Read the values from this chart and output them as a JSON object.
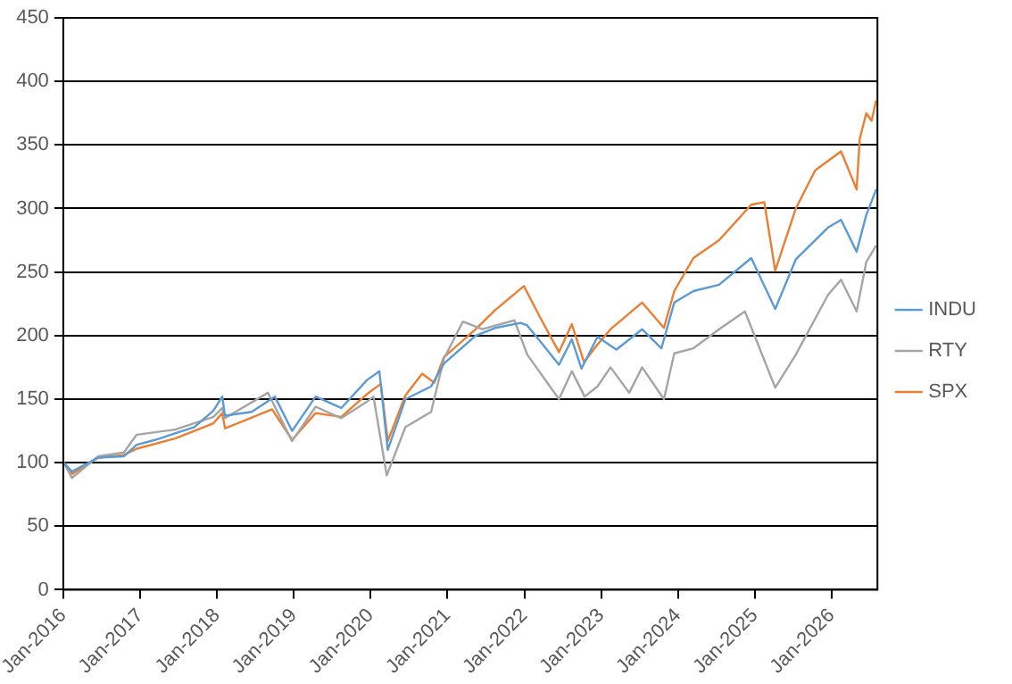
{
  "chart_data": {
    "type": "line",
    "ylim": [
      0,
      450
    ],
    "yticks": [
      0,
      50,
      100,
      150,
      200,
      250,
      300,
      350,
      400,
      450
    ],
    "xlim": [
      "2016-01-01",
      "2026-08-07"
    ],
    "xticks": [
      {
        "value": "2016-01-01",
        "label": "Jan-2016"
      },
      {
        "value": "2017-01-01",
        "label": "Jan-2017"
      },
      {
        "value": "2018-01-01",
        "label": "Jan-2018"
      },
      {
        "value": "2019-01-01",
        "label": "Jan-2019"
      },
      {
        "value": "2020-01-01",
        "label": "Jan-2020"
      },
      {
        "value": "2021-01-01",
        "label": "Jan-2021"
      },
      {
        "value": "2022-01-01",
        "label": "Jan-2022"
      },
      {
        "value": "2023-01-01",
        "label": "Jan-2023"
      },
      {
        "value": "2024-01-01",
        "label": "Jan-2024"
      },
      {
        "value": "2025-01-01",
        "label": "Jan-2025"
      },
      {
        "value": "2026-01-01",
        "label": "Jan-2026"
      }
    ],
    "grid": "y",
    "legend": "right",
    "marker": "none",
    "line_style": "solid",
    "series": [
      {
        "name": "INDU",
        "color": "#5b9bd5",
        "x": [
          "2016-01-04",
          "2016-02-11",
          "2016-06-15",
          "2016-10-15",
          "2016-12-15",
          "2017-03-15",
          "2017-06-15",
          "2017-09-15",
          "2017-12-15",
          "2018-01-26",
          "2018-02-08",
          "2018-06-15",
          "2018-10-03",
          "2018-12-24",
          "2019-04-15",
          "2019-08-15",
          "2019-12-15",
          "2020-02-12",
          "2020-03-23",
          "2020-06-15",
          "2020-10-15",
          "2020-12-15",
          "2021-05-15",
          "2021-08-15",
          "2021-12-15",
          "2022-01-15",
          "2022-03-15",
          "2022-06-15",
          "2022-08-15",
          "2022-09-30",
          "2022-12-15",
          "2023-03-15",
          "2023-07-15",
          "2023-10-15",
          "2023-12-15",
          "2024-03-15",
          "2024-07-15",
          "2024-12-15",
          "2025-04-08",
          "2025-07-15",
          "2025-12-15",
          "2026-02-15",
          "2026-04-30",
          "2026-06-15",
          "2026-08-01"
        ],
        "values": [
          100,
          93,
          104,
          105,
          114,
          118,
          123,
          128,
          141,
          152,
          137,
          140,
          152,
          125,
          152,
          143,
          165,
          172,
          110,
          150,
          160,
          178,
          200,
          206,
          210,
          208,
          196,
          177,
          197,
          174,
          199,
          189,
          205,
          190,
          226,
          235,
          240,
          261,
          221,
          260,
          285,
          291,
          266,
          295,
          315
        ]
      },
      {
        "name": "RTY",
        "color": "#a5a5a5",
        "x": [
          "2016-01-04",
          "2016-02-11",
          "2016-06-15",
          "2016-10-15",
          "2016-12-15",
          "2017-06-15",
          "2017-12-15",
          "2018-01-26",
          "2018-02-08",
          "2018-08-31",
          "2018-12-24",
          "2019-04-15",
          "2019-08-15",
          "2019-12-15",
          "2020-01-15",
          "2020-03-18",
          "2020-06-15",
          "2020-10-15",
          "2020-12-15",
          "2021-03-15",
          "2021-06-15",
          "2021-11-15",
          "2022-01-15",
          "2022-06-15",
          "2022-08-15",
          "2022-10-15",
          "2022-12-15",
          "2023-02-15",
          "2023-05-15",
          "2023-07-15",
          "2023-10-27",
          "2023-12-15",
          "2024-03-15",
          "2024-07-15",
          "2024-11-15",
          "2025-04-08",
          "2025-07-15",
          "2025-12-15",
          "2026-02-15",
          "2026-04-30",
          "2026-06-15",
          "2026-08-01"
        ],
        "values": [
          100,
          88,
          105,
          108,
          122,
          126,
          136,
          143,
          135,
          155,
          117,
          144,
          135,
          148,
          152,
          90,
          128,
          140,
          182,
          211,
          205,
          212,
          185,
          150,
          172,
          152,
          160,
          175,
          155,
          175,
          150,
          186,
          190,
          205,
          219,
          159,
          185,
          232,
          244,
          219,
          258,
          271
        ]
      },
      {
        "name": "SPX",
        "color": "#ed7d31",
        "x": [
          "2016-01-04",
          "2016-02-11",
          "2016-06-15",
          "2016-10-15",
          "2016-12-15",
          "2017-06-15",
          "2017-12-15",
          "2018-01-26",
          "2018-02-08",
          "2018-09-20",
          "2018-12-24",
          "2019-04-15",
          "2019-08-15",
          "2019-12-15",
          "2020-02-19",
          "2020-03-23",
          "2020-06-15",
          "2020-09-02",
          "2020-10-30",
          "2020-12-15",
          "2021-05-15",
          "2021-08-15",
          "2021-12-30",
          "2022-03-15",
          "2022-06-15",
          "2022-08-15",
          "2022-10-12",
          "2022-12-15",
          "2023-02-15",
          "2023-07-15",
          "2023-10-27",
          "2023-12-15",
          "2024-03-15",
          "2024-07-15",
          "2024-12-15",
          "2025-02-15",
          "2025-04-08",
          "2025-07-15",
          "2025-10-15",
          "2026-02-15",
          "2026-04-30",
          "2026-05-15",
          "2026-06-15",
          "2026-07-10",
          "2026-08-01"
        ],
        "values": [
          100,
          91,
          104,
          106,
          111,
          119,
          131,
          139,
          127,
          142,
          118,
          139,
          136,
          154,
          162,
          117,
          153,
          170,
          163,
          183,
          205,
          220,
          239,
          215,
          187,
          209,
          179,
          193,
          205,
          226,
          206,
          235,
          261,
          275,
          303,
          305,
          251,
          300,
          330,
          345,
          315,
          355,
          375,
          369,
          385
        ]
      }
    ]
  }
}
